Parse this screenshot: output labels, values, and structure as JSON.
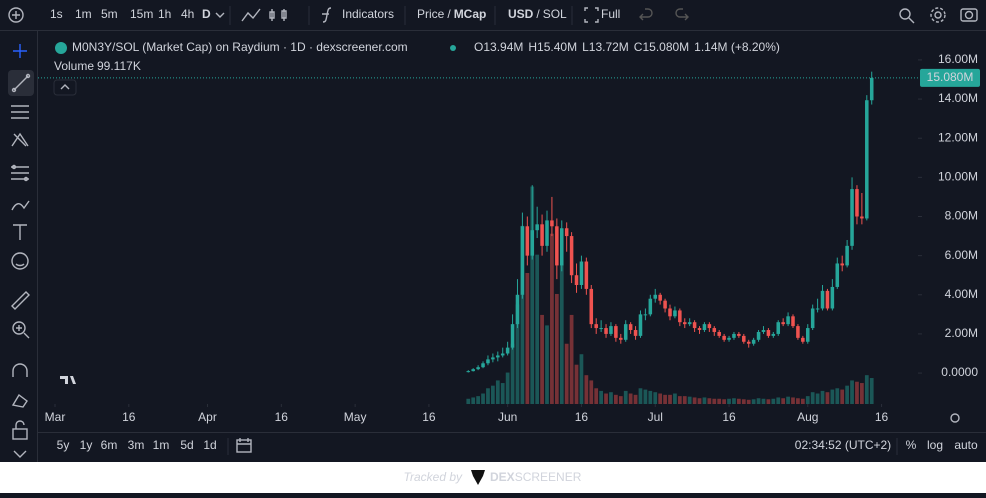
{
  "toolbar": {
    "intervals": [
      "1s",
      "1m",
      "5m",
      "15m",
      "1h",
      "4h",
      "D"
    ],
    "indicators": "Indicators",
    "price_toggle": {
      "left": "Price",
      "sep": "/",
      "right": "MCap"
    },
    "currency_toggle": {
      "left": "USD",
      "sep": "/",
      "right": "SOL"
    },
    "full": "Full"
  },
  "chart_data": {
    "type": "candlestick",
    "title": "M0N3Y/SOL (Market Cap) on Raydium · 1D · dexscreener.com",
    "legend": [
      {
        "key": "O",
        "value": "13.94M"
      },
      {
        "key": "H",
        "value": "15.40M"
      },
      {
        "key": "L",
        "value": "13.72M"
      },
      {
        "key": "C",
        "value": "15.080M"
      }
    ],
    "change": "1.14M (+8.20%)",
    "volume_name": "Volume",
    "volume_value": "99.117K",
    "last_price_label": "15.080M",
    "colors": {
      "up": "#26a69a",
      "down": "#ef5350"
    },
    "grid": false,
    "xlim": [
      "Mar 1",
      "Aug 23"
    ],
    "xticks": [
      {
        "value": "Mar 1",
        "label": "Mar"
      },
      {
        "value": "Mar 16",
        "label": "16"
      },
      {
        "value": "Apr 1",
        "label": "Apr"
      },
      {
        "value": "Apr 16",
        "label": "16"
      },
      {
        "value": "May 1",
        "label": "May"
      },
      {
        "value": "May 16",
        "label": "16"
      },
      {
        "value": "Jun 1",
        "label": "Jun"
      },
      {
        "value": "Jun 16",
        "label": "16"
      },
      {
        "value": "Jul 1",
        "label": "Jul"
      },
      {
        "value": "Jul 16",
        "label": "16"
      },
      {
        "value": "Aug 1",
        "label": "Aug"
      },
      {
        "value": "Aug 16",
        "label": "16"
      }
    ],
    "ylim": [
      -1.58,
      16.66
    ],
    "yticks": [
      {
        "value": 0,
        "label": "0.0000"
      },
      {
        "value": 2,
        "label": "2.00M"
      },
      {
        "value": 4,
        "label": "4.00M"
      },
      {
        "value": 6,
        "label": "6.00M"
      },
      {
        "value": 8,
        "label": "8.00M"
      },
      {
        "value": 10,
        "label": "10.00M"
      },
      {
        "value": 12,
        "label": "12.00M"
      },
      {
        "value": 14,
        "label": "14.00M"
      },
      {
        "value": 16,
        "label": "16.00M"
      }
    ],
    "x": [
      "May 24",
      "May 25",
      "May 26",
      "May 27",
      "May 28",
      "May 29",
      "May 30",
      "May 31",
      "Jun 1",
      "Jun 2",
      "Jun 3",
      "Jun 4",
      "Jun 5",
      "Jun 6",
      "Jun 7",
      "Jun 8",
      "Jun 9",
      "Jun 10",
      "Jun 11",
      "Jun 12",
      "Jun 13",
      "Jun 14",
      "Jun 15",
      "Jun 16",
      "Jun 17",
      "Jun 18",
      "Jun 19",
      "Jun 20",
      "Jun 21",
      "Jun 22",
      "Jun 23",
      "Jun 24",
      "Jun 25",
      "Jun 26",
      "Jun 27",
      "Jun 28",
      "Jun 29",
      "Jun 30",
      "Jul 1",
      "Jul 2",
      "Jul 3",
      "Jul 4",
      "Jul 5",
      "Jul 6",
      "Jul 7",
      "Jul 8",
      "Jul 9",
      "Jul 10",
      "Jul 11",
      "Jul 12",
      "Jul 13",
      "Jul 14",
      "Jul 15",
      "Jul 16",
      "Jul 17",
      "Jul 18",
      "Jul 19",
      "Jul 20",
      "Jul 21",
      "Jul 22",
      "Jul 23",
      "Jul 24",
      "Jul 25",
      "Jul 26",
      "Jul 27",
      "Jul 28",
      "Jul 29",
      "Jul 30",
      "Jul 31",
      "Aug 1",
      "Aug 2",
      "Aug 3",
      "Aug 4",
      "Aug 5",
      "Aug 6",
      "Aug 7",
      "Aug 8",
      "Aug 9",
      "Aug 10",
      "Aug 11",
      "Aug 12",
      "Aug 13",
      "Aug 14"
    ],
    "candles": [
      [
        0.05,
        0.15,
        0.03,
        0.1
      ],
      [
        0.1,
        0.25,
        0.08,
        0.2
      ],
      [
        0.2,
        0.4,
        0.15,
        0.3
      ],
      [
        0.3,
        0.6,
        0.25,
        0.5
      ],
      [
        0.5,
        0.9,
        0.4,
        0.7
      ],
      [
        0.7,
        1.0,
        0.55,
        0.8
      ],
      [
        0.8,
        1.1,
        0.6,
        0.9
      ],
      [
        0.9,
        1.3,
        0.8,
        1.0
      ],
      [
        1.0,
        1.6,
        0.9,
        1.3
      ],
      [
        1.3,
        3.0,
        1.2,
        2.5
      ],
      [
        2.5,
        4.8,
        2.3,
        4.0
      ],
      [
        4.0,
        8.2,
        3.8,
        7.5
      ],
      [
        7.5,
        8.0,
        5.5,
        6.0
      ],
      [
        6.0,
        9.6,
        5.8,
        7.3
      ],
      [
        7.3,
        8.5,
        6.9,
        7.6
      ],
      [
        7.6,
        8.1,
        6.0,
        6.5
      ],
      [
        6.5,
        8.3,
        6.2,
        7.8
      ],
      [
        7.8,
        9.0,
        7.0,
        7.5
      ],
      [
        7.5,
        7.9,
        4.8,
        5.5
      ],
      [
        5.5,
        7.8,
        5.2,
        7.4
      ],
      [
        7.4,
        7.7,
        6.2,
        7.0
      ],
      [
        7.0,
        7.2,
        4.6,
        5.0
      ],
      [
        5.0,
        5.6,
        4.1,
        4.5
      ],
      [
        4.5,
        6.0,
        4.3,
        5.7
      ],
      [
        5.7,
        5.9,
        4.0,
        4.3
      ],
      [
        4.3,
        4.5,
        2.3,
        2.5
      ],
      [
        2.5,
        2.8,
        2.0,
        2.3
      ],
      [
        2.3,
        2.7,
        2.1,
        2.3
      ],
      [
        2.3,
        2.5,
        1.8,
        2.0
      ],
      [
        2.0,
        2.6,
        1.9,
        2.4
      ],
      [
        2.4,
        2.5,
        1.6,
        1.8
      ],
      [
        1.8,
        2.0,
        1.5,
        1.7
      ],
      [
        1.7,
        2.7,
        1.6,
        2.5
      ],
      [
        2.5,
        2.6,
        2.0,
        2.2
      ],
      [
        2.2,
        2.4,
        1.7,
        1.9
      ],
      [
        1.9,
        3.2,
        1.8,
        3.0
      ],
      [
        3.0,
        3.3,
        2.7,
        3.0
      ],
      [
        3.0,
        4.0,
        2.9,
        3.8
      ],
      [
        3.8,
        4.3,
        3.6,
        4.0
      ],
      [
        4.0,
        4.1,
        3.5,
        3.7
      ],
      [
        3.7,
        3.8,
        3.1,
        3.3
      ],
      [
        3.3,
        3.5,
        2.7,
        2.9
      ],
      [
        2.9,
        3.4,
        2.8,
        3.2
      ],
      [
        3.2,
        3.3,
        2.4,
        2.6
      ],
      [
        2.6,
        2.8,
        2.3,
        2.5
      ],
      [
        2.5,
        2.8,
        2.4,
        2.6
      ],
      [
        2.6,
        2.7,
        2.1,
        2.3
      ],
      [
        2.3,
        2.4,
        2.0,
        2.2
      ],
      [
        2.2,
        2.6,
        2.1,
        2.5
      ],
      [
        2.5,
        2.6,
        2.1,
        2.3
      ],
      [
        2.3,
        2.4,
        1.9,
        2.1
      ],
      [
        2.1,
        2.2,
        1.8,
        1.9
      ],
      [
        1.9,
        2.0,
        1.6,
        1.7
      ],
      [
        1.7,
        1.9,
        1.6,
        1.8
      ],
      [
        1.8,
        2.1,
        1.7,
        2.0
      ],
      [
        2.0,
        2.1,
        1.8,
        1.9
      ],
      [
        1.9,
        2.0,
        1.5,
        1.6
      ],
      [
        1.6,
        1.7,
        1.3,
        1.5
      ],
      [
        1.5,
        1.8,
        1.4,
        1.7
      ],
      [
        1.7,
        2.2,
        1.6,
        2.1
      ],
      [
        2.1,
        2.4,
        2.0,
        2.2
      ],
      [
        2.2,
        2.3,
        1.8,
        1.9
      ],
      [
        1.9,
        2.1,
        1.8,
        2.0
      ],
      [
        2.0,
        2.7,
        1.9,
        2.6
      ],
      [
        2.6,
        2.8,
        2.4,
        2.5
      ],
      [
        2.5,
        3.1,
        2.4,
        2.9
      ],
      [
        2.9,
        3.0,
        2.3,
        2.4
      ],
      [
        2.4,
        2.5,
        1.7,
        1.8
      ],
      [
        1.8,
        1.9,
        1.5,
        1.6
      ],
      [
        1.6,
        2.5,
        1.5,
        2.3
      ],
      [
        2.3,
        3.5,
        2.2,
        3.3
      ],
      [
        3.3,
        3.8,
        3.1,
        3.3
      ],
      [
        3.3,
        4.5,
        3.2,
        4.2
      ],
      [
        4.2,
        4.3,
        3.2,
        3.3
      ],
      [
        3.3,
        4.8,
        3.2,
        4.4
      ],
      [
        4.4,
        5.9,
        4.3,
        5.6
      ],
      [
        5.6,
        6.0,
        5.2,
        5.5
      ],
      [
        5.5,
        6.8,
        5.4,
        6.5
      ],
      [
        6.5,
        10.0,
        6.3,
        9.4
      ],
      [
        9.4,
        9.6,
        7.6,
        8.0
      ],
      [
        8.0,
        9.2,
        7.6,
        7.9
      ],
      [
        7.9,
        14.2,
        7.8,
        13.94
      ],
      [
        13.94,
        15.4,
        13.72,
        15.08
      ]
    ],
    "volume": [
      20,
      25,
      30,
      40,
      60,
      70,
      90,
      80,
      120,
      230,
      380,
      680,
      500,
      830,
      570,
      340,
      300,
      650,
      420,
      530,
      230,
      340,
      150,
      190,
      110,
      90,
      60,
      50,
      40,
      45,
      35,
      30,
      50,
      40,
      35,
      60,
      55,
      50,
      45,
      40,
      35,
      35,
      40,
      30,
      30,
      28,
      25,
      22,
      25,
      22,
      20,
      20,
      18,
      20,
      22,
      20,
      18,
      16,
      18,
      22,
      20,
      18,
      20,
      25,
      22,
      28,
      25,
      22,
      20,
      30,
      45,
      40,
      50,
      45,
      55,
      60,
      55,
      70,
      90,
      85,
      80,
      110,
      99.117
    ]
  },
  "bottom_bar": {
    "ranges": [
      "5y",
      "1y",
      "6m",
      "3m",
      "1m",
      "5d",
      "1d"
    ],
    "time": "02:34:52 (UTC+2)",
    "percent": "%",
    "log": "log",
    "auto": "auto"
  },
  "footer": {
    "tracked_by": "Tracked by",
    "brand_bold": "DEX",
    "brand_rest": "SCREENER"
  }
}
